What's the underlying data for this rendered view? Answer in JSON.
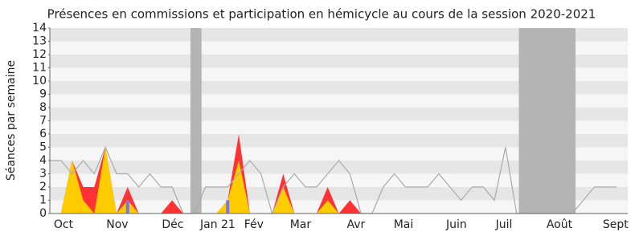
{
  "chart_data": {
    "type": "area",
    "title": "Présences en commissions et participation en hémicycle au cours de la session 2020-2021",
    "y_label": "Séances par semaine",
    "x": [
      0,
      1,
      2,
      3,
      4,
      5,
      6,
      7,
      8,
      9,
      10,
      11,
      12,
      13,
      14,
      15,
      16,
      17,
      18,
      19,
      20,
      21,
      22,
      23,
      24,
      25,
      26,
      27,
      28,
      29,
      30,
      31,
      32,
      33,
      34,
      35,
      36,
      37,
      38,
      39,
      40,
      41,
      42,
      43,
      44,
      45,
      46,
      47,
      48,
      49,
      50,
      51
    ],
    "xlim": [
      0,
      52
    ],
    "xticks": [
      {
        "value": 1.23,
        "label": "Oct"
      },
      {
        "value": 6.07,
        "label": "Nov"
      },
      {
        "value": 11.06,
        "label": "Déc"
      },
      {
        "value": 15.11,
        "label": "Jan 21"
      },
      {
        "value": 18.36,
        "label": "Fév"
      },
      {
        "value": 22.56,
        "label": "Mar"
      },
      {
        "value": 27.55,
        "label": "Avr"
      },
      {
        "value": 31.82,
        "label": "Mai"
      },
      {
        "value": 36.59,
        "label": "Juin"
      },
      {
        "value": 40.86,
        "label": "Juil"
      },
      {
        "value": 45.85,
        "label": "Août"
      },
      {
        "value": 50.9,
        "label": "Sept"
      }
    ],
    "ylim": [
      0,
      14
    ],
    "yticks": [
      0,
      1,
      2,
      3,
      4,
      5,
      6,
      7,
      8,
      9,
      10,
      11,
      12,
      13,
      14
    ],
    "shaded_ranges": [
      [
        12.65,
        13.65
      ],
      [
        42.2,
        47.3
      ]
    ],
    "series": [
      {
        "kind": "area",
        "color": "#ff3333",
        "values": [
          0,
          0,
          4,
          2,
          2,
          5,
          0,
          2,
          0,
          0,
          0,
          1,
          0,
          0,
          0,
          0,
          1,
          6,
          0,
          0,
          0,
          3,
          0,
          0,
          0,
          2,
          0,
          1,
          0,
          0,
          0,
          0,
          0,
          0,
          0,
          0,
          0,
          0,
          0,
          0,
          0,
          0,
          0,
          0,
          0,
          0,
          0,
          0,
          0,
          0,
          0,
          0
        ]
      },
      {
        "kind": "area",
        "color": "#ffcc00",
        "values": [
          0,
          0,
          4,
          1,
          0,
          5,
          0,
          1,
          0,
          0,
          0,
          0,
          0,
          0,
          0,
          0,
          1,
          4,
          0,
          0,
          0,
          2,
          0,
          0,
          0,
          1,
          0,
          0,
          0,
          0,
          0,
          0,
          0,
          0,
          0,
          0,
          0,
          0,
          0,
          0,
          0,
          0,
          0,
          0,
          0,
          0,
          0,
          0,
          0,
          0,
          0,
          0
        ]
      },
      {
        "kind": "bar",
        "color": "#7777ee",
        "values": [
          0,
          0,
          0,
          0,
          0,
          0,
          0,
          1,
          0,
          0,
          0,
          0,
          0,
          0,
          0,
          0,
          1,
          0,
          0,
          0,
          0,
          0,
          0,
          0,
          0,
          0,
          0,
          0,
          0,
          0,
          0,
          0,
          0,
          0,
          0,
          0,
          0,
          0,
          0,
          0,
          0,
          0,
          0,
          0,
          0,
          0,
          0,
          0,
          0,
          0,
          0,
          0
        ]
      },
      {
        "kind": "line",
        "color": "#aaaaaa",
        "values": [
          4,
          4,
          3,
          4,
          3,
          5,
          3,
          3,
          2,
          3,
          2,
          2,
          0,
          0,
          2,
          2,
          2,
          3,
          4,
          3,
          0,
          2,
          3,
          2,
          2,
          3,
          4,
          3,
          0,
          0,
          2,
          3,
          2,
          2,
          2,
          3,
          2,
          1,
          2,
          2,
          1,
          5,
          0,
          0,
          0,
          0,
          0,
          0,
          1,
          2,
          2,
          2
        ]
      }
    ]
  }
}
